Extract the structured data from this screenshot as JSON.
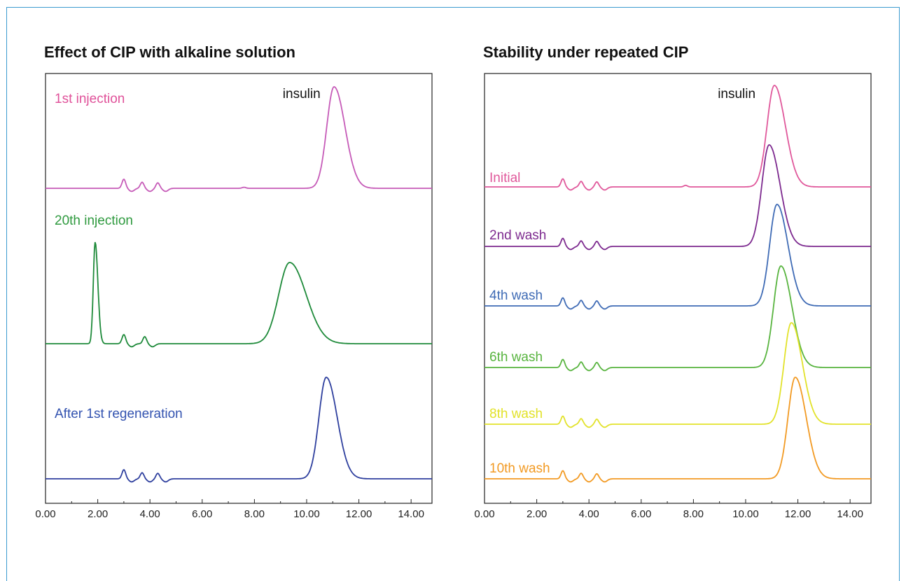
{
  "chart_data": [
    {
      "type": "line",
      "title": "Effect of CIP with alkaline solution",
      "xlabel": "",
      "ylabel": "",
      "xlim": [
        0,
        14.8
      ],
      "xticks": [
        "0.00",
        "2.00",
        "4.00",
        "6.00",
        "8.00",
        "10.00",
        "12.00",
        "14.00"
      ],
      "grid": false,
      "legend": "inline labels",
      "annotation": {
        "text": "insulin",
        "x": 10.85
      },
      "series": [
        {
          "name": "1st injection",
          "color": "#c65bb8",
          "label_color": "#e0529a",
          "peaks": [
            {
              "x": 3.0,
              "h": 0.09
            },
            {
              "x": 3.7,
              "h": 0.06
            },
            {
              "x": 4.3,
              "h": 0.055
            },
            {
              "x": 7.6,
              "h": 0.01
            },
            {
              "x": 11.05,
              "h": 1.0
            }
          ]
        },
        {
          "name": "20th injection",
          "color": "#1e8a3a",
          "label_color": "#2f9a3f",
          "peaks": [
            {
              "x": 1.9,
              "h": 1.0
            },
            {
              "x": 3.0,
              "h": 0.09
            },
            {
              "x": 3.8,
              "h": 0.07
            },
            {
              "x": 9.35,
              "h": 0.8
            }
          ]
        },
        {
          "name": "After 1st regeneration",
          "color": "#2e3f9e",
          "label_color": "#3353b0",
          "peaks": [
            {
              "x": 3.0,
              "h": 0.09
            },
            {
              "x": 3.7,
              "h": 0.06
            },
            {
              "x": 4.3,
              "h": 0.055
            },
            {
              "x": 10.75,
              "h": 1.0
            }
          ]
        }
      ]
    },
    {
      "type": "line",
      "title": "Stability under repeated CIP",
      "xlabel": "",
      "ylabel": "",
      "xlim": [
        0,
        14.8
      ],
      "xticks": [
        "0.00",
        "2.00",
        "4.00",
        "6.00",
        "8.00",
        "10.00",
        "12.00",
        "14.00"
      ],
      "grid": false,
      "legend": "inline labels",
      "annotation": {
        "text": "insulin",
        "x": 10.7
      },
      "series": [
        {
          "name": "Initial",
          "color": "#e0589b",
          "peaks": [
            {
              "x": 3.0,
              "h": 0.08
            },
            {
              "x": 3.7,
              "h": 0.055
            },
            {
              "x": 4.3,
              "h": 0.05
            },
            {
              "x": 7.7,
              "h": 0.015
            },
            {
              "x": 11.1,
              "h": 1.0
            }
          ]
        },
        {
          "name": "2nd wash",
          "color": "#7d2a8f",
          "peaks": [
            {
              "x": 3.0,
              "h": 0.08
            },
            {
              "x": 3.7,
              "h": 0.055
            },
            {
              "x": 4.3,
              "h": 0.05
            },
            {
              "x": 10.9,
              "h": 1.0
            }
          ]
        },
        {
          "name": "4th wash",
          "color": "#3f6bb5",
          "peaks": [
            {
              "x": 3.0,
              "h": 0.08
            },
            {
              "x": 3.7,
              "h": 0.055
            },
            {
              "x": 4.3,
              "h": 0.05
            },
            {
              "x": 11.2,
              "h": 1.0
            }
          ]
        },
        {
          "name": "6th wash",
          "color": "#58b43f",
          "peaks": [
            {
              "x": 3.0,
              "h": 0.08
            },
            {
              "x": 3.7,
              "h": 0.055
            },
            {
              "x": 4.3,
              "h": 0.05
            },
            {
              "x": 11.35,
              "h": 1.0
            }
          ]
        },
        {
          "name": "8th wash",
          "color": "#e2e22a",
          "peaks": [
            {
              "x": 3.0,
              "h": 0.08
            },
            {
              "x": 3.7,
              "h": 0.055
            },
            {
              "x": 4.3,
              "h": 0.05
            },
            {
              "x": 11.75,
              "h": 1.0
            }
          ]
        },
        {
          "name": "10th wash",
          "color": "#f29a23",
          "peaks": [
            {
              "x": 3.0,
              "h": 0.08
            },
            {
              "x": 3.7,
              "h": 0.055
            },
            {
              "x": 4.3,
              "h": 0.05
            },
            {
              "x": 11.9,
              "h": 1.0
            }
          ]
        }
      ]
    }
  ]
}
